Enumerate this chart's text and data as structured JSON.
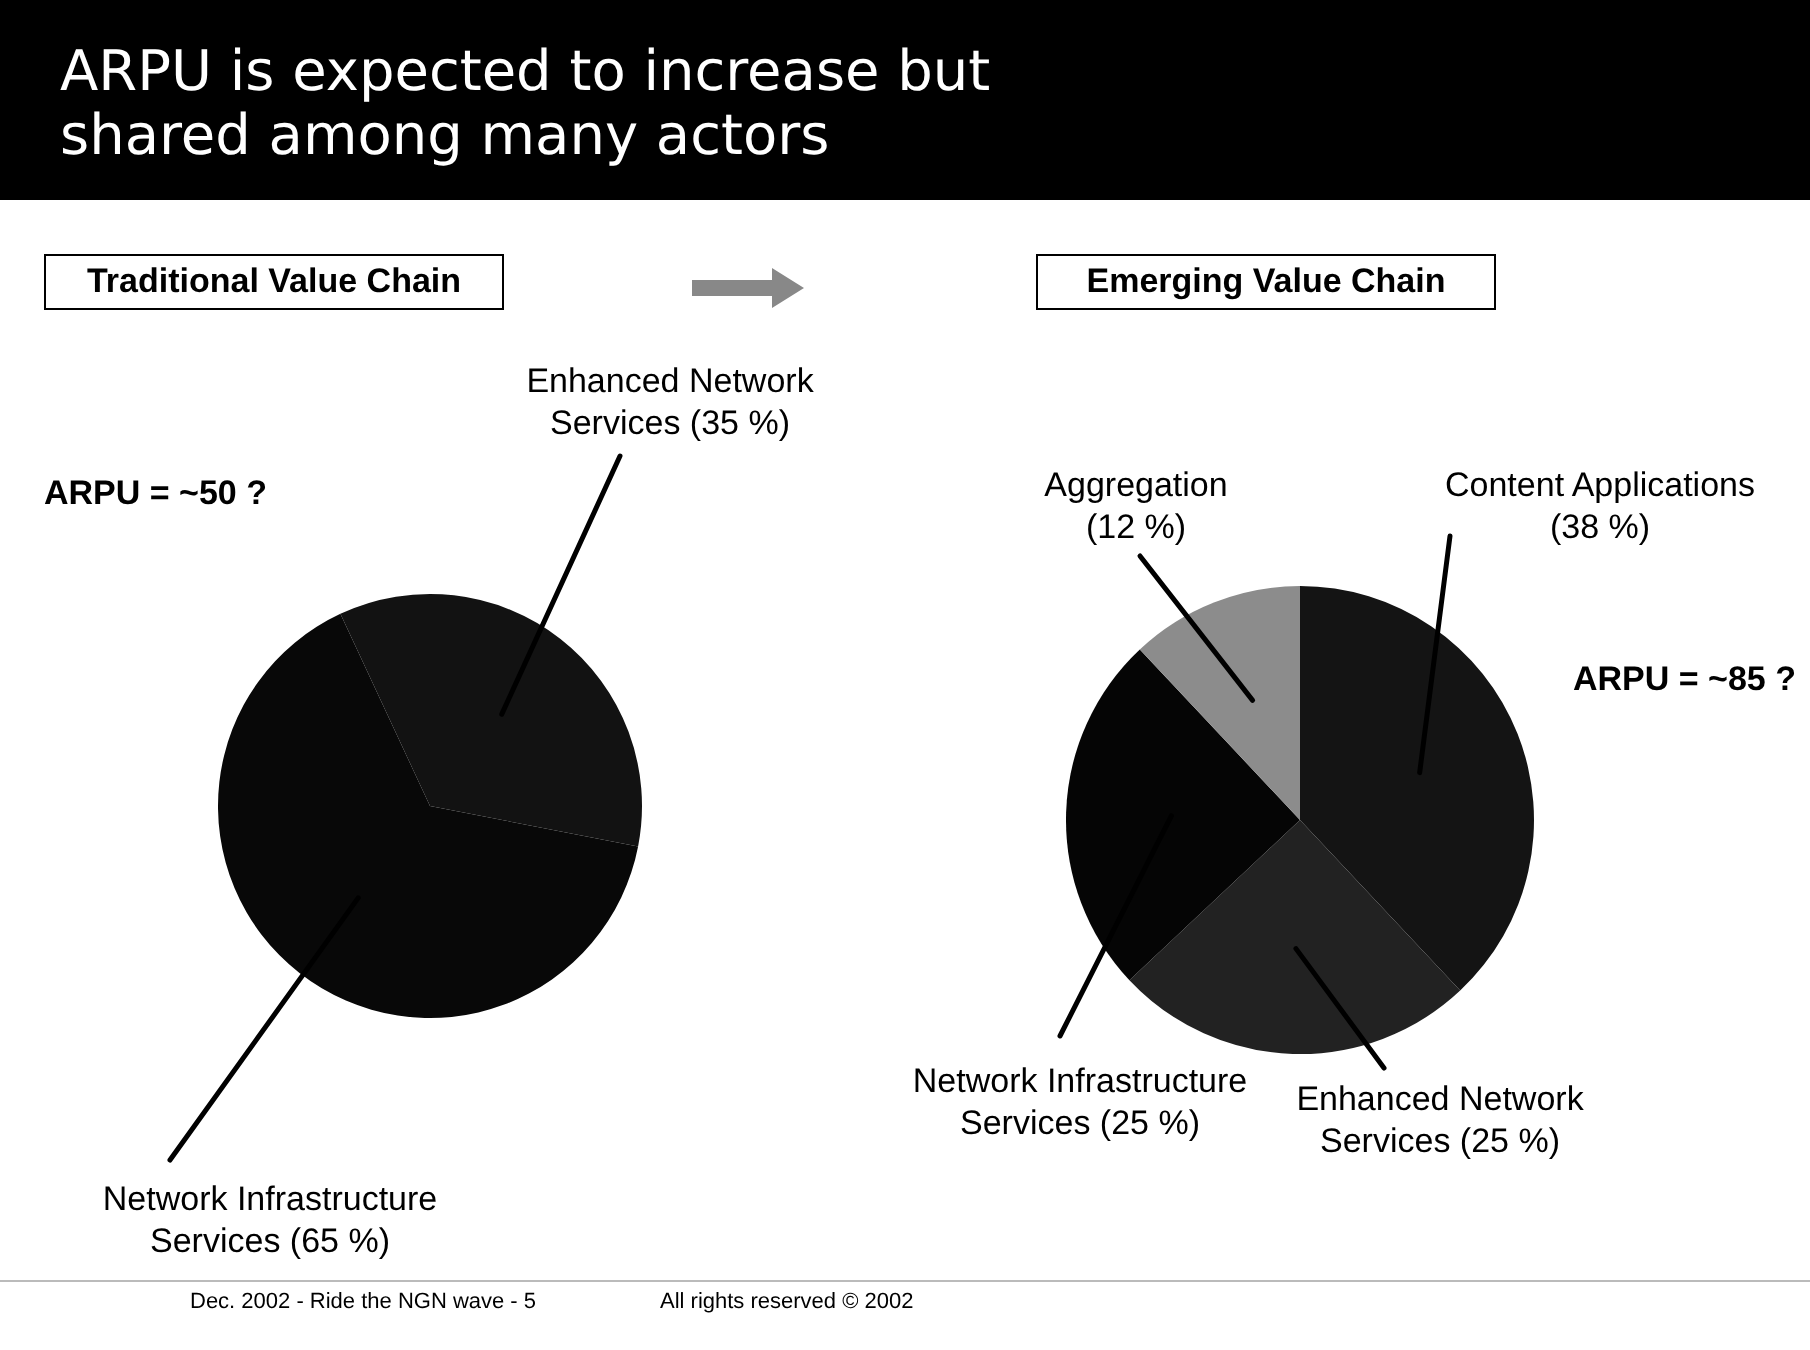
{
  "chart_data": [
    {
      "type": "other",
      "title": "ARPU is expected to increase but shared among many actors",
      "annotations": [
        "Dec. 2002 - Ride the NGN wave - 5",
        "All rights reserved © 2002"
      ]
    },
    {
      "type": "pie",
      "title": "Traditional Value Chain",
      "categories": [
        "Enhanced Network Services",
        "Network Infrastructure Services"
      ],
      "values": [
        35,
        65
      ],
      "colors": [
        "#121212",
        "#080808"
      ],
      "value_labels": [
        "(35 %)",
        "(65 %)"
      ],
      "legend": false,
      "annotations": [
        "ARPU = ~50 ?"
      ]
    },
    {
      "type": "pie",
      "title": "Emerging Value Chain",
      "categories": [
        "Content Applications",
        "Enhanced Network Services",
        "Network Infrastructure Services",
        "Aggregation"
      ],
      "values": [
        38,
        25,
        25,
        12
      ],
      "colors": [
        "#141414",
        "#222222",
        "#050505",
        "#8c8c8c"
      ],
      "value_labels": [
        "(38 %)",
        "(25 %)",
        "(25 %)",
        "(12 %)"
      ],
      "legend": false,
      "annotations": [
        "ARPU = ~85 ?"
      ]
    }
  ]
}
